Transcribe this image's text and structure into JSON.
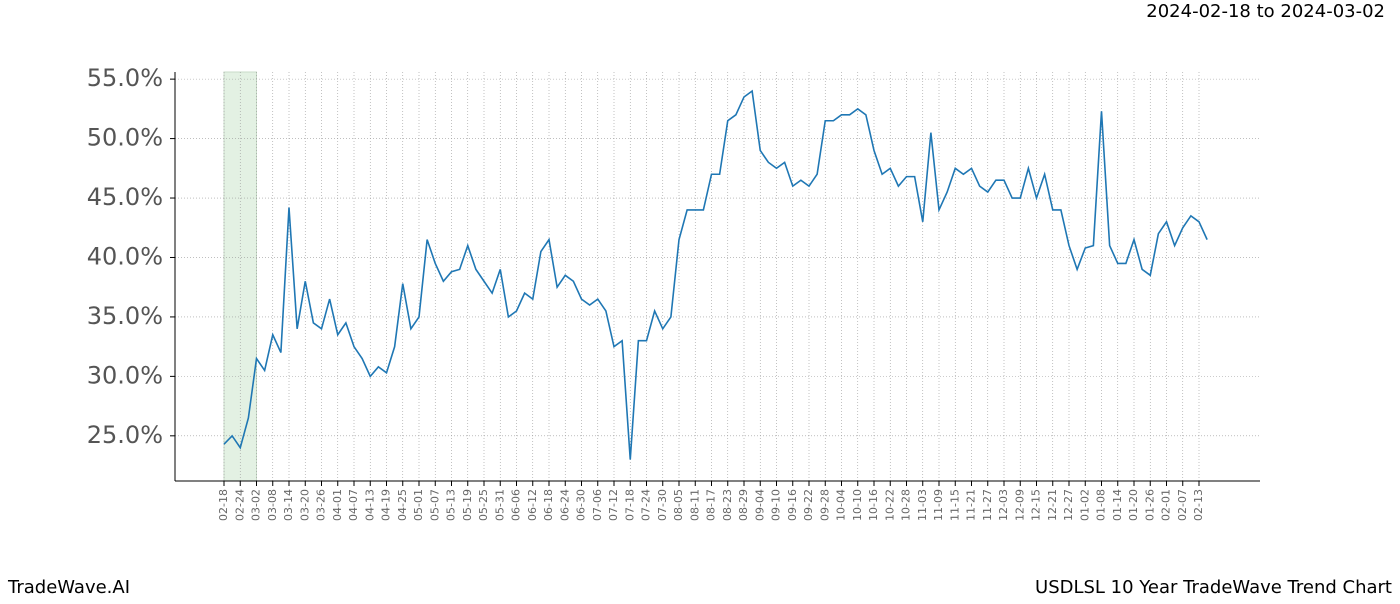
{
  "chart_data": {
    "type": "line",
    "title": "USDLSL 10 Year TradeWave Trend Chart",
    "subtitle": "2024-02-18 to 2024-03-02",
    "brand": "TradeWave.AI",
    "categories": [
      "02-18",
      null,
      "02-24",
      null,
      "03-02",
      null,
      "03-08",
      null,
      "03-14",
      null,
      "03-20",
      null,
      "03-26",
      null,
      "04-01",
      null,
      "04-07",
      null,
      "04-13",
      null,
      "04-19",
      null,
      "04-25",
      null,
      "05-01",
      null,
      "05-07",
      null,
      "05-13",
      null,
      "05-19",
      null,
      "05-25",
      null,
      "05-31",
      null,
      "06-06",
      null,
      "06-12",
      null,
      "06-18",
      null,
      "06-24",
      null,
      "06-30",
      null,
      "07-06",
      null,
      "07-12",
      null,
      "07-18",
      null,
      "07-24",
      null,
      "07-30",
      null,
      "08-05",
      null,
      "08-11",
      null,
      "08-17",
      null,
      "08-23",
      null,
      "08-29",
      null,
      "09-04",
      null,
      "09-10",
      null,
      "09-16",
      null,
      "09-22",
      null,
      "09-28",
      null,
      "10-04",
      null,
      "10-10",
      null,
      "10-16",
      null,
      "10-22",
      null,
      "10-28",
      null,
      "11-03",
      null,
      "11-09",
      null,
      "11-15",
      null,
      "11-21",
      null,
      "11-27",
      null,
      "12-03",
      null,
      "12-09",
      null,
      "12-15",
      null,
      "12-21",
      null,
      "12-27",
      null,
      "01-02",
      null,
      "01-08",
      null,
      "01-14",
      null,
      "01-20",
      null,
      "01-26",
      null,
      "02-01",
      null,
      "02-07",
      null,
      "02-13",
      null
    ],
    "series": [
      {
        "name": "USDLSL",
        "color": "#1f77b4",
        "values": [
          24.3,
          25.0,
          24.0,
          26.5,
          31.5,
          30.5,
          33.5,
          32.0,
          44.2,
          34.0,
          38.0,
          34.5,
          34.0,
          36.5,
          33.5,
          34.5,
          32.5,
          31.5,
          30.0,
          30.8,
          30.3,
          32.5,
          37.8,
          34.0,
          35.0,
          41.5,
          39.5,
          38.0,
          38.8,
          39.0,
          41.0,
          39.0,
          38.0,
          37.0,
          39.0,
          35.0,
          35.5,
          37.0,
          36.5,
          40.5,
          41.5,
          37.5,
          38.5,
          38.0,
          36.5,
          36.0,
          36.5,
          35.5,
          32.5,
          33.0,
          23.0,
          33.0,
          33.0,
          35.5,
          34.0,
          35.0,
          41.5,
          44.0,
          44.0,
          44.0,
          47.0,
          47.0,
          51.5,
          52.0,
          53.5,
          54.0,
          49.0,
          48.0,
          47.5,
          48.0,
          46.0,
          46.5,
          46.0,
          47.0,
          51.5,
          51.5,
          52.0,
          52.0,
          52.5,
          52.0,
          49.0,
          47.0,
          47.5,
          46.0,
          46.8,
          46.8,
          43.0,
          50.5,
          44.0,
          45.5,
          47.5,
          47.0,
          47.5,
          46.0,
          45.5,
          46.5,
          46.5,
          45.0,
          45.0,
          47.5,
          45.0,
          47.0,
          44.0,
          44.0,
          41.0,
          39.0,
          40.8,
          41.0,
          52.3,
          41.0,
          39.5,
          39.5,
          41.5,
          39.0,
          38.5,
          42.0,
          43.0,
          41.0,
          42.5,
          43.5,
          43.0,
          41.5
        ]
      }
    ],
    "highlight": [
      "02-18",
      "03-02"
    ],
    "highlight_color": "#e3f1e3",
    "ylim": [
      21.2,
      55.6
    ],
    "yticks": [
      {
        "value": 25,
        "label": "25.0%"
      },
      {
        "value": 30,
        "label": "30.0%"
      },
      {
        "value": 35,
        "label": "35.0%"
      },
      {
        "value": 40,
        "label": "40.0%"
      },
      {
        "value": 45,
        "label": "45.0%"
      },
      {
        "value": 50,
        "label": "50.0%"
      },
      {
        "value": 55,
        "label": "55.0%"
      }
    ],
    "grid": true
  }
}
